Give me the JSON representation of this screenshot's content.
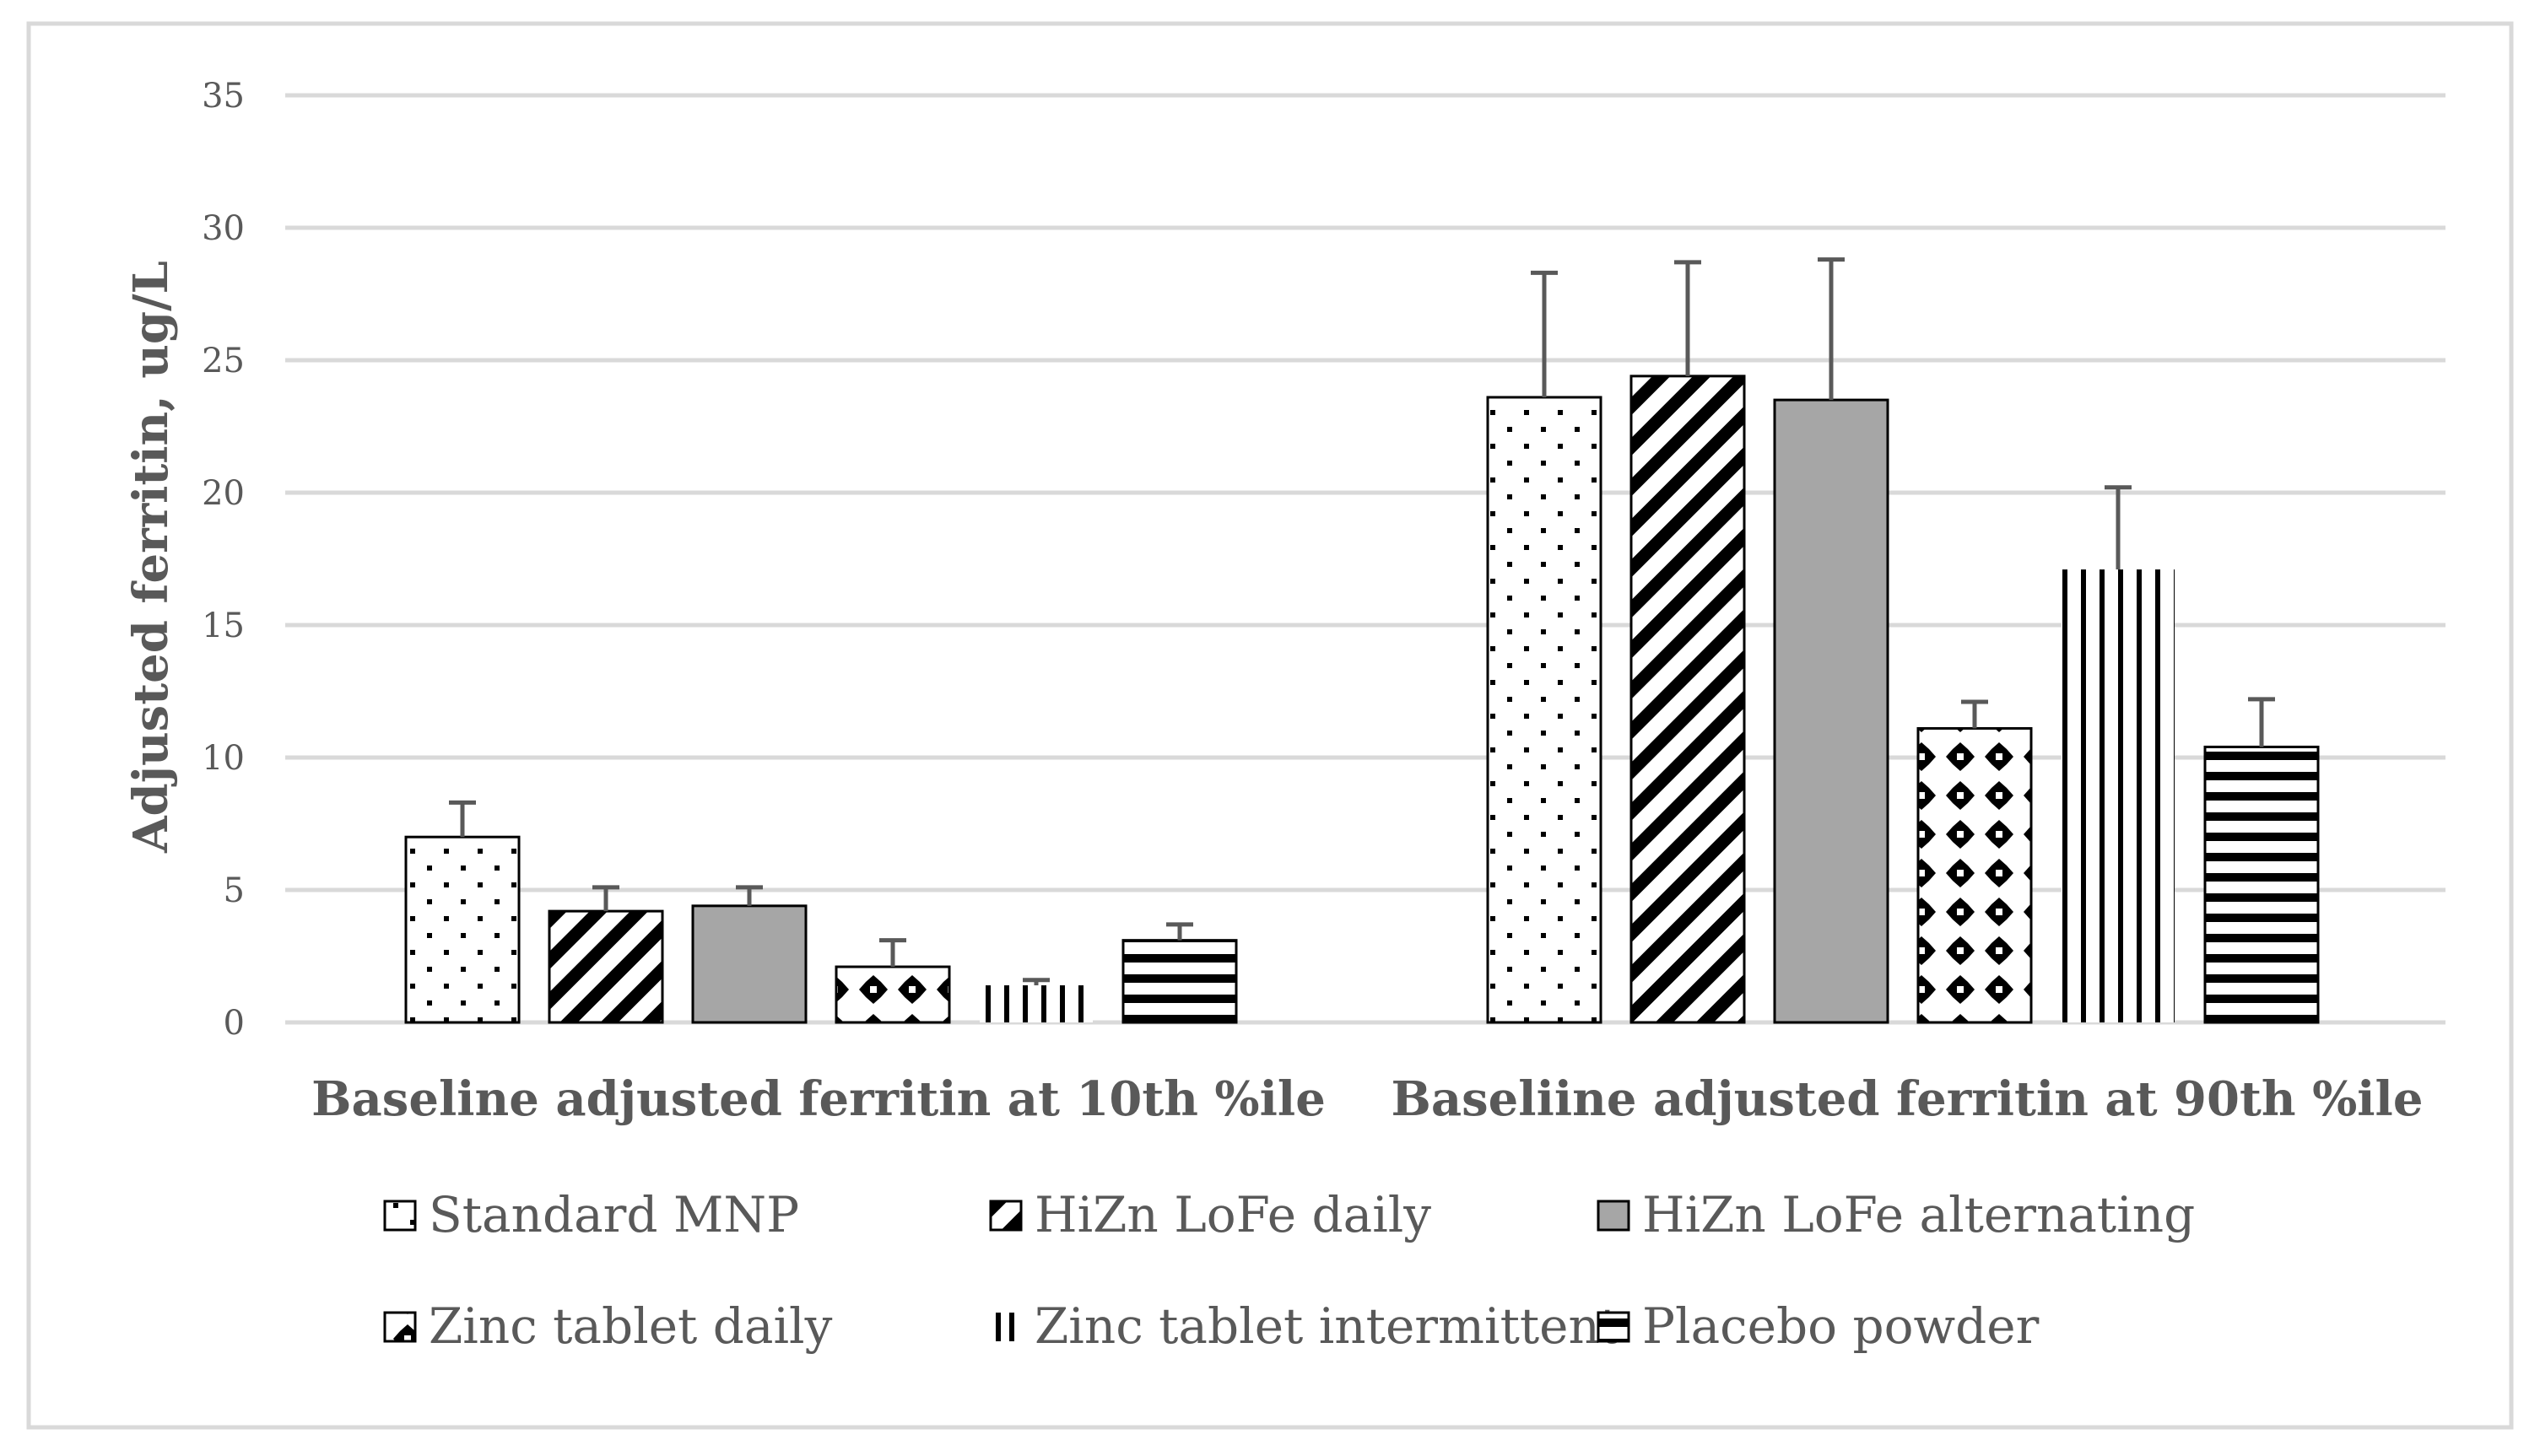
{
  "chart_data": {
    "type": "bar",
    "title": "",
    "xlabel": "",
    "ylabel": "Adjusted ferritin, ug/L",
    "ylim": [
      0,
      35
    ],
    "yticks": [
      0,
      5,
      10,
      15,
      20,
      25,
      30,
      35
    ],
    "grid": true,
    "legend_position": "bottom",
    "categories": [
      "Baseline adjusted ferritin at 10th %ile",
      "Baseliine adjusted ferritin at 90th %ile"
    ],
    "series": [
      {
        "name": "Standard MNP",
        "pattern": "dots",
        "values": [
          7.0,
          23.6
        ],
        "error_upper": [
          8.3,
          28.3
        ]
      },
      {
        "name": "HiZn LoFe daily",
        "pattern": "diagonal",
        "values": [
          4.2,
          24.4
        ],
        "error_upper": [
          5.1,
          28.7
        ]
      },
      {
        "name": "HiZn LoFe alternating",
        "pattern": "solid",
        "values": [
          4.4,
          23.5
        ],
        "error_upper": [
          5.1,
          28.8
        ]
      },
      {
        "name": "Zinc tablet daily",
        "pattern": "diamonds",
        "values": [
          2.1,
          11.1
        ],
        "error_upper": [
          3.1,
          12.1
        ]
      },
      {
        "name": "Zinc tablet intermittent",
        "pattern": "vertical",
        "values": [
          1.4,
          17.1
        ],
        "error_upper": [
          1.6,
          20.2
        ]
      },
      {
        "name": "Placebo powder",
        "pattern": "horizontal",
        "values": [
          3.1,
          10.4
        ],
        "error_upper": [
          3.7,
          12.2
        ]
      }
    ],
    "colors": {
      "grid": "#d9d9d9",
      "frame": "#d9d9d9",
      "error": "#595959",
      "solid_fill": "#a6a6a6",
      "text": "#595959"
    }
  }
}
